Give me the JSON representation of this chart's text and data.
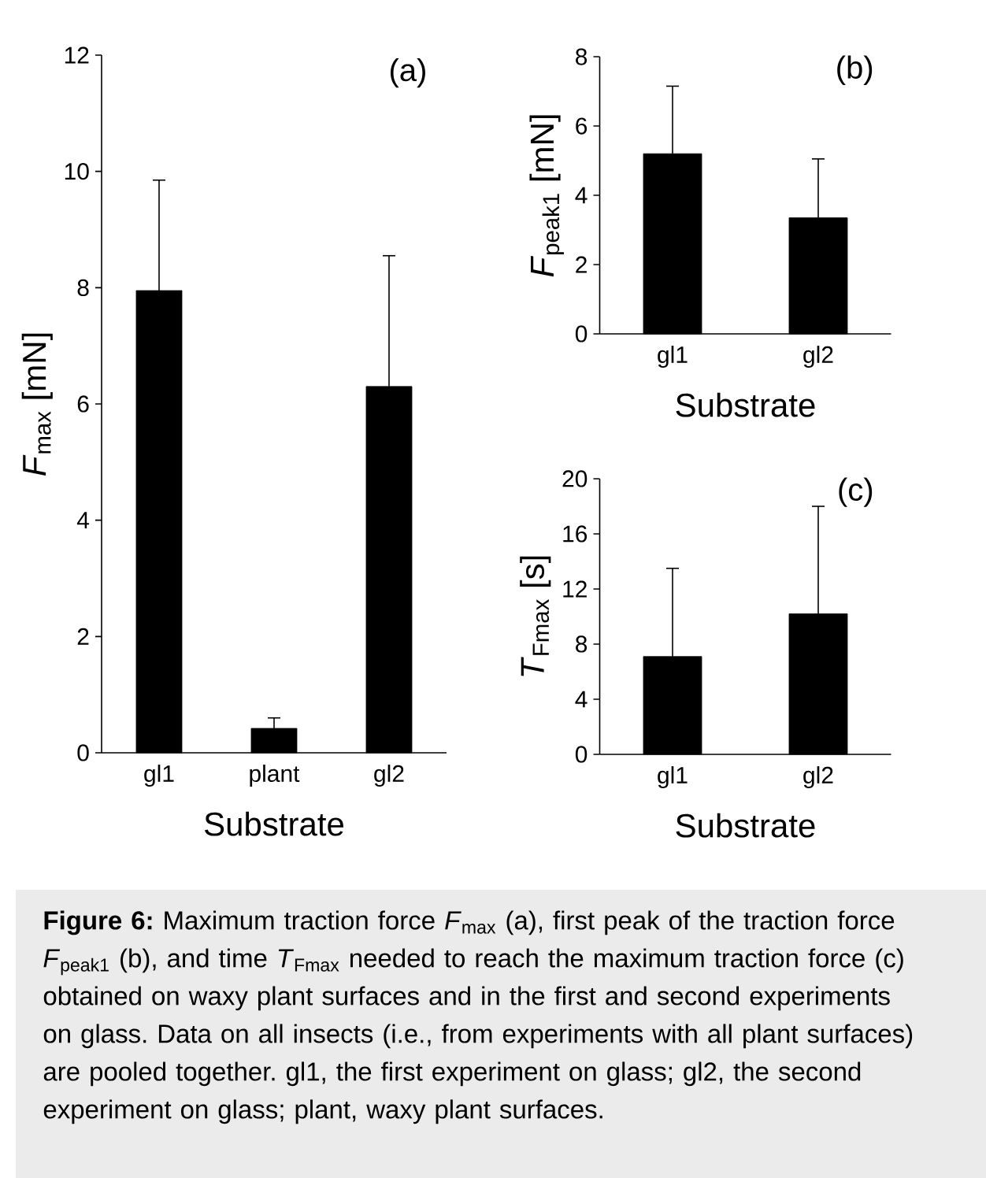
{
  "chart_data": [
    {
      "type": "bar",
      "title": "(a)",
      "xlabel": "Substrate",
      "ylabel": "*F*$_{max}$ [mN]",
      "categories": [
        "gl1",
        "plant",
        "gl2"
      ],
      "values": [
        7.95,
        0.42,
        6.3
      ],
      "errors": [
        [
          7.95,
          9.85
        ],
        [
          0.42,
          0.6
        ],
        [
          6.3,
          8.55
        ]
      ],
      "color": "#000000",
      "ylim": [
        0,
        12
      ],
      "yticks": [
        0,
        2,
        4,
        6,
        8,
        10,
        12
      ],
      "annotations": [
        "**Figure 6:** Maximum traction force *F*$_{max}$ (a), first peak of the traction force *F*$_{peak1}$ (b), and time *T*$_{Fmax}$ needed to reach the maximum traction force (c) obtained on waxy plant surfaces and in the first and second experiments on glass. Data on all insects (i.e., from experiments with all plant surfaces) are pooled together. gl1, the first experiment on glass; gl2, the second experiment on glass; plant, waxy plant surfaces."
      ]
    },
    {
      "type": "bar",
      "title": "(b)",
      "xlabel": "Substrate",
      "ylabel": "*F*$_{peak1}$ [mN]",
      "categories": [
        "gl1",
        "gl2"
      ],
      "values": [
        5.2,
        3.35
      ],
      "errors": [
        [
          5.2,
          7.15
        ],
        [
          3.35,
          5.05
        ]
      ],
      "color": "#000000",
      "ylim": [
        0,
        8
      ],
      "yticks": [
        0,
        2,
        4,
        6,
        8
      ]
    },
    {
      "type": "bar",
      "title": "(c)",
      "xlabel": "Substrate",
      "ylabel": "*T*$_{Fmax}$ [s]",
      "categories": [
        "gl1",
        "gl2"
      ],
      "values": [
        7.1,
        10.2
      ],
      "errors": [
        [
          7.1,
          13.5
        ],
        [
          10.2,
          18.0
        ]
      ],
      "color": "#000000",
      "ylim": [
        0,
        20
      ],
      "yticks": [
        0,
        4,
        8,
        12,
        16,
        20
      ]
    }
  ]
}
